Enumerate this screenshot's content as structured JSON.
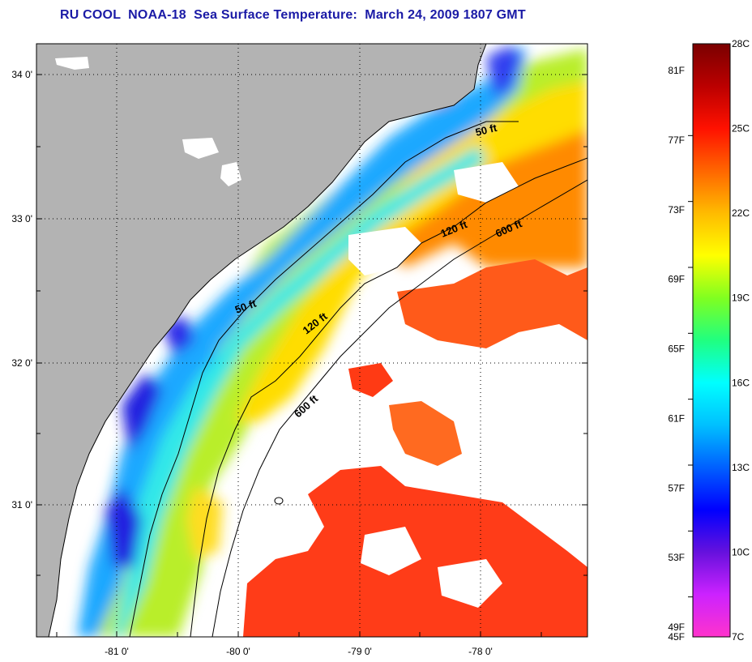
{
  "title": "RU COOL  NOAA-18  Sea Surface Temperature:  March 24, 2009 1807 GMT",
  "map": {
    "latitude_ticks": [
      "34 0'",
      "33 0'",
      "32 0'",
      "31 0'"
    ],
    "longitude_ticks": [
      "-81 0'",
      "-80 0'",
      "-79 0'",
      "-78 0'"
    ],
    "depth_contour_labels": [
      "50 ft",
      "50 ft",
      "120 ft",
      "120 ft",
      "600 ft",
      "600 ft"
    ],
    "colors": {
      "land": "#b3b3b3",
      "cloud": "#ffffff",
      "coastline": "#000000"
    }
  },
  "colorbar": {
    "fahrenheit_labels": [
      "81F",
      "77F",
      "73F",
      "69F",
      "65F",
      "61F",
      "57F",
      "53F",
      "49F",
      "45F"
    ],
    "celsius_labels": [
      "28C",
      "25C",
      "22C",
      "19C",
      "16C",
      "13C",
      "10C",
      "7C"
    ],
    "colormap": [
      "#ff33cc",
      "#cc22ff",
      "#6611dd",
      "#0000ff",
      "#0060ff",
      "#00c0ff",
      "#00ffff",
      "#20ff80",
      "#80ff20",
      "#ffff00",
      "#ffbb00",
      "#ff6600",
      "#ff1100",
      "#bb0000",
      "#7a0000"
    ]
  }
}
